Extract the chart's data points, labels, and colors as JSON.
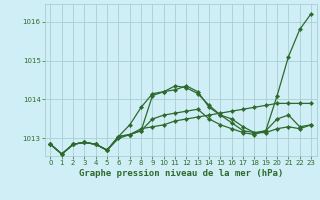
{
  "title": "Graphe pression niveau de la mer (hPa)",
  "background_color": "#d0eef5",
  "plot_bg_color": "#d0eef5",
  "grid_color": "#a0c8cc",
  "line_color": "#2d6a2d",
  "xlim": [
    -0.5,
    23.5
  ],
  "ylim": [
    1012.55,
    1016.45
  ],
  "yticks": [
    1013,
    1014,
    1015,
    1016
  ],
  "xticks": [
    0,
    1,
    2,
    3,
    4,
    5,
    6,
    7,
    8,
    9,
    10,
    11,
    12,
    13,
    14,
    15,
    16,
    17,
    18,
    19,
    20,
    21,
    22,
    23
  ],
  "series": [
    [
      1012.85,
      1012.6,
      1012.85,
      1012.9,
      1012.85,
      1012.7,
      1013.05,
      1013.1,
      1013.2,
      1014.1,
      1014.2,
      1014.25,
      1014.35,
      1014.2,
      1013.8,
      1013.6,
      1013.4,
      1013.2,
      1013.15,
      1013.2,
      1014.1,
      1015.1,
      1015.8,
      1016.2
    ],
    [
      1012.85,
      1012.6,
      1012.85,
      1012.9,
      1012.85,
      1012.7,
      1013.05,
      1013.35,
      1013.8,
      1014.15,
      1014.2,
      1014.35,
      1014.3,
      1014.15,
      1013.85,
      1013.6,
      1013.5,
      1013.3,
      1013.15,
      1013.15,
      1013.25,
      1013.3,
      1013.25,
      1013.35
    ],
    [
      1012.85,
      1012.6,
      1012.85,
      1012.9,
      1012.85,
      1012.7,
      1013.05,
      1013.1,
      1013.25,
      1013.3,
      1013.35,
      1013.45,
      1013.5,
      1013.55,
      1013.6,
      1013.65,
      1013.7,
      1013.75,
      1013.8,
      1013.85,
      1013.9,
      1013.9,
      1013.9,
      1013.9
    ],
    [
      1012.85,
      1012.6,
      1012.85,
      1012.9,
      1012.85,
      1012.7,
      1013.0,
      1013.1,
      1013.2,
      1013.5,
      1013.6,
      1013.65,
      1013.7,
      1013.75,
      1013.5,
      1013.35,
      1013.25,
      1013.15,
      1013.1,
      1013.2,
      1013.5,
      1013.6,
      1013.3,
      1013.35
    ]
  ],
  "figsize": [
    3.2,
    2.0
  ],
  "dpi": 100,
  "xlabel_fontsize": 6.5,
  "tick_fontsize": 5.0,
  "linewidth": 0.9,
  "markersize": 2.2
}
